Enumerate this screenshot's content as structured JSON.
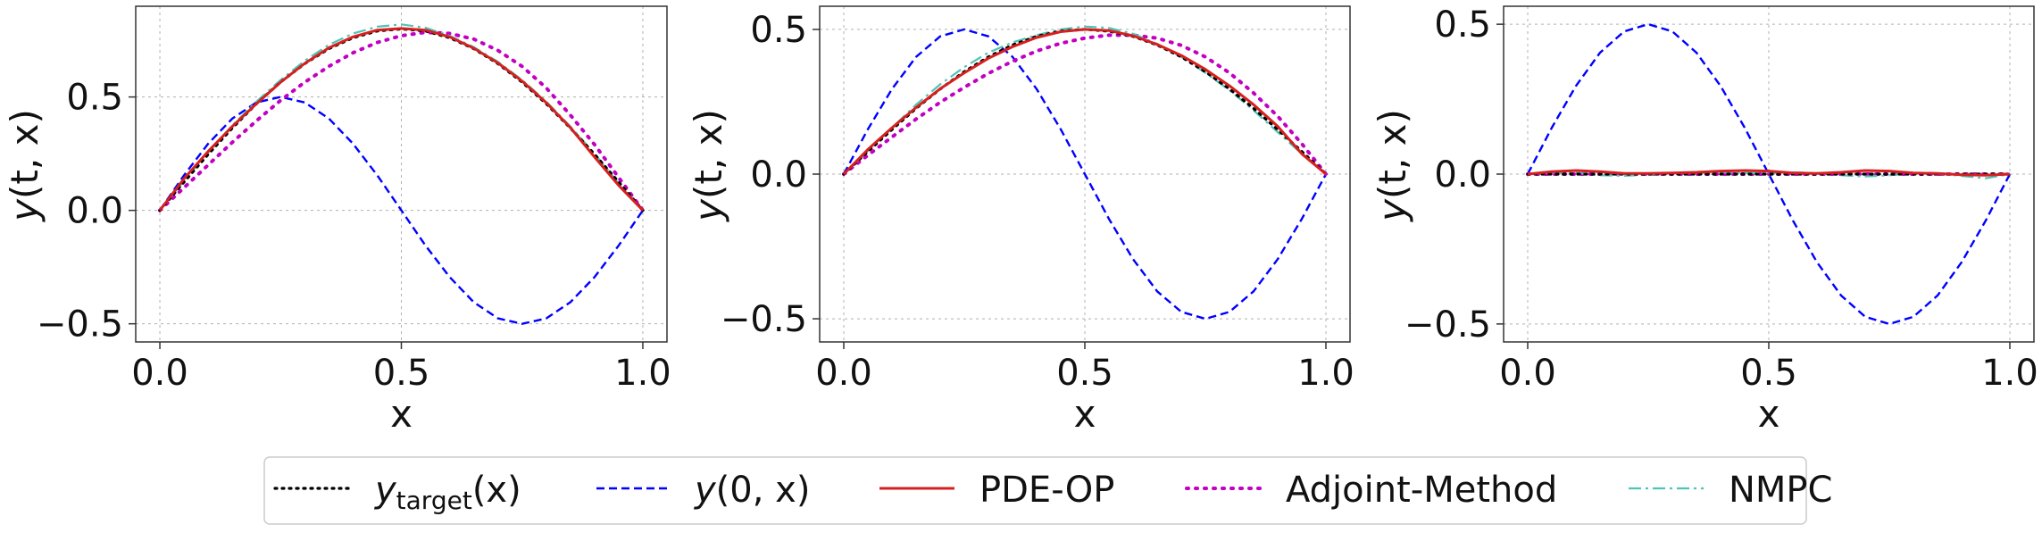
{
  "chart_data": [
    {
      "type": "line",
      "xlabel": "x",
      "ylabel_main": "y",
      "ylabel_args": "(t, x)",
      "xlim": [
        -0.05,
        1.05
      ],
      "ylim": [
        -0.58,
        0.9
      ],
      "xticks": [
        0.0,
        0.5,
        1.0
      ],
      "xtick_labels": [
        "0.0",
        "0.5",
        "1.0"
      ],
      "yticks": [
        -0.5,
        0.0,
        0.5
      ],
      "ytick_labels": [
        "−0.5",
        "0.0",
        "0.5"
      ],
      "grid": true,
      "x": [
        0,
        0.05,
        0.1,
        0.15,
        0.2,
        0.25,
        0.3,
        0.35,
        0.4,
        0.45,
        0.5,
        0.55,
        0.6,
        0.65,
        0.7,
        0.75,
        0.8,
        0.85,
        0.9,
        0.95,
        1.0
      ],
      "series": [
        {
          "key": "target",
          "values": [
            0,
            0.125,
            0.247,
            0.363,
            0.47,
            0.566,
            0.647,
            0.713,
            0.761,
            0.791,
            0.8,
            0.791,
            0.761,
            0.713,
            0.647,
            0.566,
            0.47,
            0.363,
            0.247,
            0.125,
            0
          ]
        },
        {
          "key": "initial",
          "values": [
            0,
            0.155,
            0.294,
            0.405,
            0.476,
            0.5,
            0.476,
            0.405,
            0.294,
            0.155,
            0,
            -0.155,
            -0.294,
            -0.405,
            -0.476,
            -0.5,
            -0.476,
            -0.405,
            -0.294,
            -0.155,
            0
          ]
        },
        {
          "key": "pdeop",
          "values": [
            0,
            0.14,
            0.26,
            0.37,
            0.47,
            0.565,
            0.648,
            0.717,
            0.765,
            0.795,
            0.802,
            0.795,
            0.765,
            0.715,
            0.65,
            0.57,
            0.475,
            0.365,
            0.235,
            0.11,
            0
          ]
        },
        {
          "key": "adjoint",
          "values": [
            0,
            0.1,
            0.2,
            0.3,
            0.395,
            0.485,
            0.565,
            0.635,
            0.695,
            0.74,
            0.77,
            0.785,
            0.78,
            0.755,
            0.705,
            0.635,
            0.54,
            0.42,
            0.29,
            0.145,
            0
          ]
        },
        {
          "key": "nmpc",
          "values": [
            0,
            0.13,
            0.255,
            0.375,
            0.48,
            0.575,
            0.66,
            0.73,
            0.78,
            0.81,
            0.82,
            0.805,
            0.77,
            0.72,
            0.655,
            0.575,
            0.48,
            0.37,
            0.25,
            0.12,
            0
          ]
        }
      ]
    },
    {
      "type": "line",
      "xlabel": "x",
      "ylabel_main": "y",
      "ylabel_args": "(t, x)",
      "xlim": [
        -0.05,
        1.05
      ],
      "ylim": [
        -0.58,
        0.58
      ],
      "xticks": [
        0.0,
        0.5,
        1.0
      ],
      "xtick_labels": [
        "0.0",
        "0.5",
        "1.0"
      ],
      "yticks": [
        -0.5,
        0.0,
        0.5
      ],
      "ytick_labels": [
        "−0.5",
        "0.0",
        "0.5"
      ],
      "grid": true,
      "x": [
        0,
        0.05,
        0.1,
        0.15,
        0.2,
        0.25,
        0.3,
        0.35,
        0.4,
        0.45,
        0.5,
        0.55,
        0.6,
        0.65,
        0.7,
        0.75,
        0.8,
        0.85,
        0.9,
        0.95,
        1.0
      ],
      "series": [
        {
          "key": "target",
          "values": [
            0,
            0.078,
            0.154,
            0.227,
            0.294,
            0.354,
            0.405,
            0.446,
            0.476,
            0.494,
            0.5,
            0.494,
            0.476,
            0.446,
            0.405,
            0.354,
            0.294,
            0.227,
            0.154,
            0.078,
            0
          ]
        },
        {
          "key": "initial",
          "values": [
            0,
            0.155,
            0.294,
            0.405,
            0.476,
            0.5,
            0.476,
            0.405,
            0.294,
            0.155,
            0,
            -0.155,
            -0.294,
            -0.405,
            -0.476,
            -0.5,
            -0.476,
            -0.405,
            -0.294,
            -0.155,
            0
          ]
        },
        {
          "key": "pdeop",
          "values": [
            0,
            0.085,
            0.16,
            0.23,
            0.295,
            0.35,
            0.4,
            0.44,
            0.472,
            0.492,
            0.5,
            0.496,
            0.478,
            0.448,
            0.41,
            0.362,
            0.305,
            0.24,
            0.165,
            0.07,
            0
          ]
        },
        {
          "key": "adjoint",
          "values": [
            0,
            0.065,
            0.128,
            0.19,
            0.248,
            0.3,
            0.348,
            0.39,
            0.425,
            0.452,
            0.47,
            0.48,
            0.48,
            0.47,
            0.445,
            0.405,
            0.35,
            0.28,
            0.2,
            0.105,
            0
          ]
        },
        {
          "key": "nmpc",
          "values": [
            0,
            0.08,
            0.16,
            0.24,
            0.31,
            0.37,
            0.42,
            0.455,
            0.48,
            0.5,
            0.51,
            0.505,
            0.485,
            0.45,
            0.405,
            0.35,
            0.29,
            0.22,
            0.145,
            0.07,
            0
          ]
        }
      ]
    },
    {
      "type": "line",
      "xlabel": "x",
      "ylabel_main": "y",
      "ylabel_args": "(t, x)",
      "xlim": [
        -0.05,
        1.05
      ],
      "ylim": [
        -0.56,
        0.56
      ],
      "xticks": [
        0.0,
        0.5,
        1.0
      ],
      "xtick_labels": [
        "0.0",
        "0.5",
        "1.0"
      ],
      "yticks": [
        -0.5,
        0.0,
        0.5
      ],
      "ytick_labels": [
        "−0.5",
        "0.0",
        "0.5"
      ],
      "grid": true,
      "x": [
        0,
        0.05,
        0.1,
        0.15,
        0.2,
        0.25,
        0.3,
        0.35,
        0.4,
        0.45,
        0.5,
        0.55,
        0.6,
        0.65,
        0.7,
        0.75,
        0.8,
        0.85,
        0.9,
        0.95,
        1.0
      ],
      "series": [
        {
          "key": "target",
          "values": [
            0,
            0,
            0,
            0,
            0,
            0,
            0,
            0,
            0,
            0,
            0,
            0,
            0,
            0,
            0,
            0,
            0,
            0,
            0,
            0,
            0
          ]
        },
        {
          "key": "initial",
          "values": [
            0,
            0.155,
            0.294,
            0.405,
            0.476,
            0.5,
            0.476,
            0.405,
            0.294,
            0.155,
            0,
            -0.155,
            -0.294,
            -0.405,
            -0.476,
            -0.5,
            -0.476,
            -0.405,
            -0.294,
            -0.155,
            0
          ]
        },
        {
          "key": "pdeop",
          "values": [
            0,
            0.008,
            0.012,
            0.008,
            0.002,
            0.002,
            0.004,
            0.006,
            0.01,
            0.012,
            0.01,
            0.004,
            0.002,
            0.006,
            0.012,
            0.01,
            0.004,
            0.002,
            -0.002,
            -0.004,
            0
          ]
        },
        {
          "key": "adjoint",
          "values": [
            0,
            0,
            0,
            0,
            0,
            0,
            0,
            0,
            0,
            0,
            0,
            0,
            0,
            0,
            0,
            0,
            0,
            0,
            0,
            0,
            0
          ]
        },
        {
          "key": "nmpc",
          "values": [
            0,
            0.005,
            0.004,
            -0.004,
            -0.006,
            -0.002,
            0.002,
            0.004,
            0.006,
            0.004,
            0.002,
            0.006,
            0.004,
            -0.004,
            -0.008,
            -0.004,
            0.004,
            0.002,
            -0.006,
            -0.014,
            0
          ]
        }
      ]
    }
  ],
  "legend": {
    "position": "bottom-center",
    "items": [
      {
        "key": "target",
        "label_main": "y",
        "label_sub": "target",
        "label_rest": "(x)",
        "color": "#000000",
        "style": "dotted"
      },
      {
        "key": "initial",
        "label_main": "y",
        "label_sub": "",
        "label_rest": "(0, x)",
        "color": "#0000ff",
        "style": "dashed"
      },
      {
        "key": "pdeop",
        "label_main": "PDE-OP",
        "label_sub": "",
        "label_rest": "",
        "color": "#d62020",
        "style": "solid"
      },
      {
        "key": "adjoint",
        "label_main": "Adjoint-Method",
        "label_sub": "",
        "label_rest": "",
        "color": "#c200c2",
        "style": "dotted"
      },
      {
        "key": "nmpc",
        "label_main": "NMPC",
        "label_sub": "",
        "label_rest": "",
        "color": "#4fc4b4",
        "style": "dashdot"
      }
    ]
  }
}
